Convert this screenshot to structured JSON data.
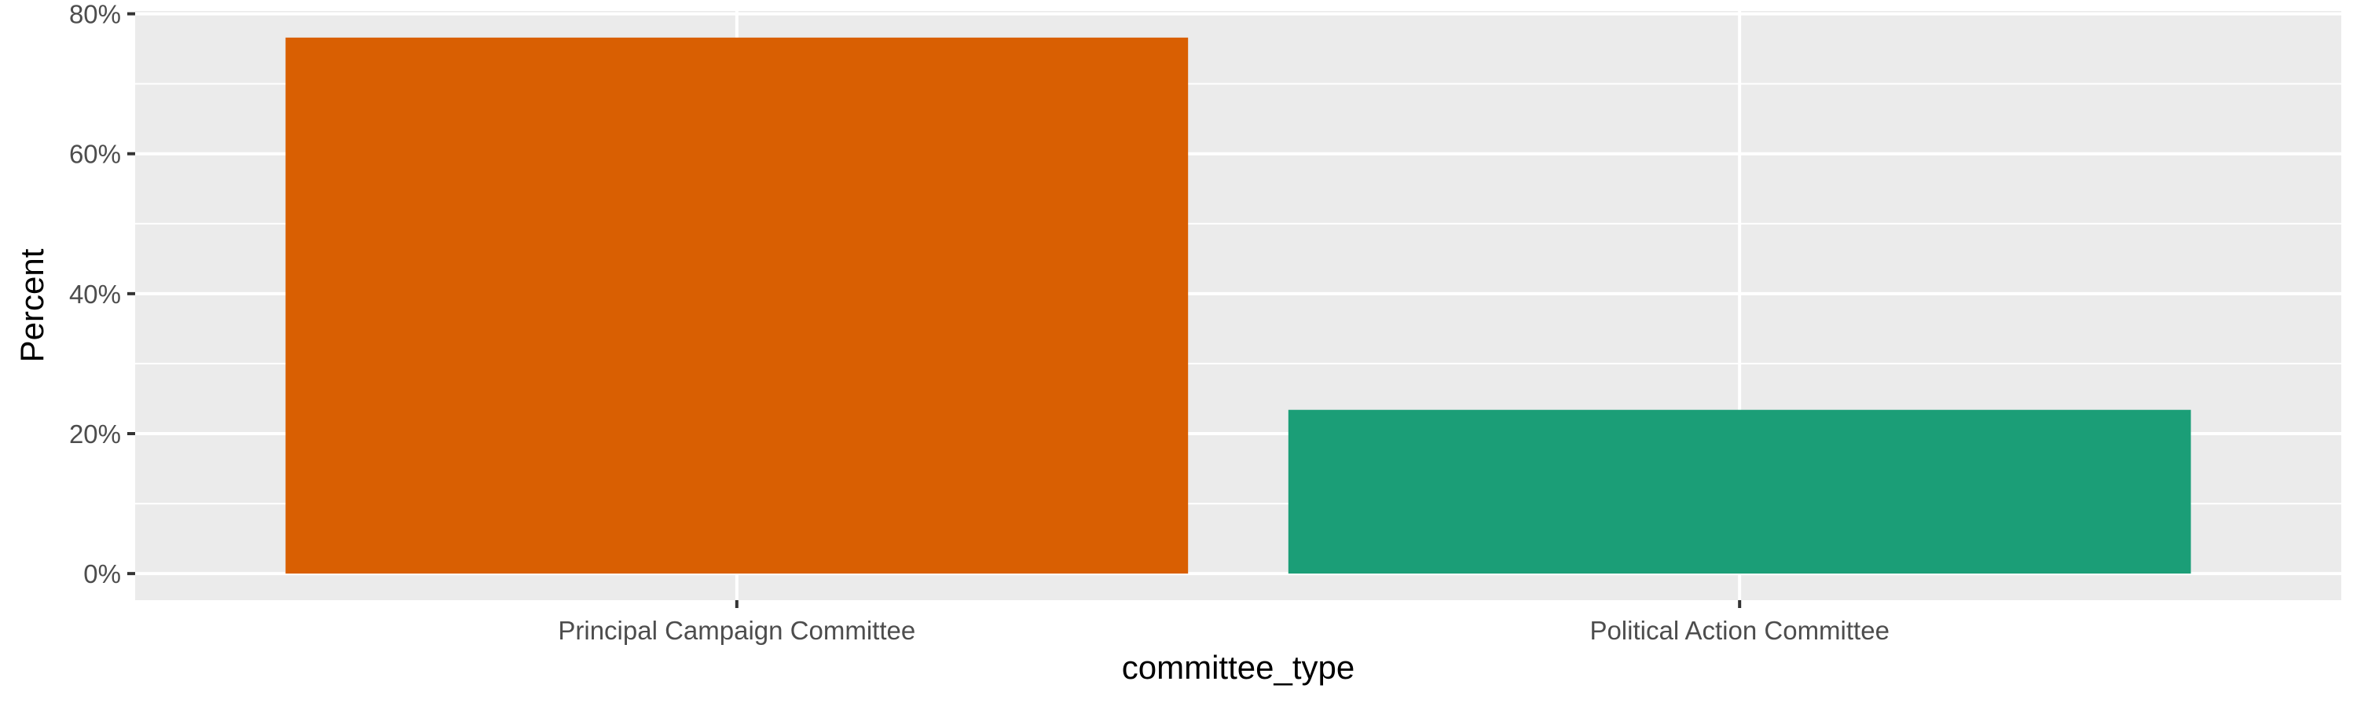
{
  "chart_data": {
    "type": "bar",
    "title": "",
    "xlabel": "committee_type",
    "ylabel": "Percent",
    "categories": [
      "Principal Campaign Committee",
      "Political Action Committee"
    ],
    "values": [
      76.6,
      23.4
    ],
    "bar_colors": [
      "#D95F02",
      "#1B9E77"
    ],
    "ylim": [
      -3.8,
      80.4
    ],
    "y_ticks": [
      0,
      20,
      40,
      60,
      80
    ],
    "y_tick_labels": [
      "0%",
      "20%",
      "40%",
      "60%",
      "80%"
    ],
    "grid": true,
    "legend": "none",
    "panel_background": "#EBEBEB",
    "grid_color": "#FFFFFF"
  }
}
